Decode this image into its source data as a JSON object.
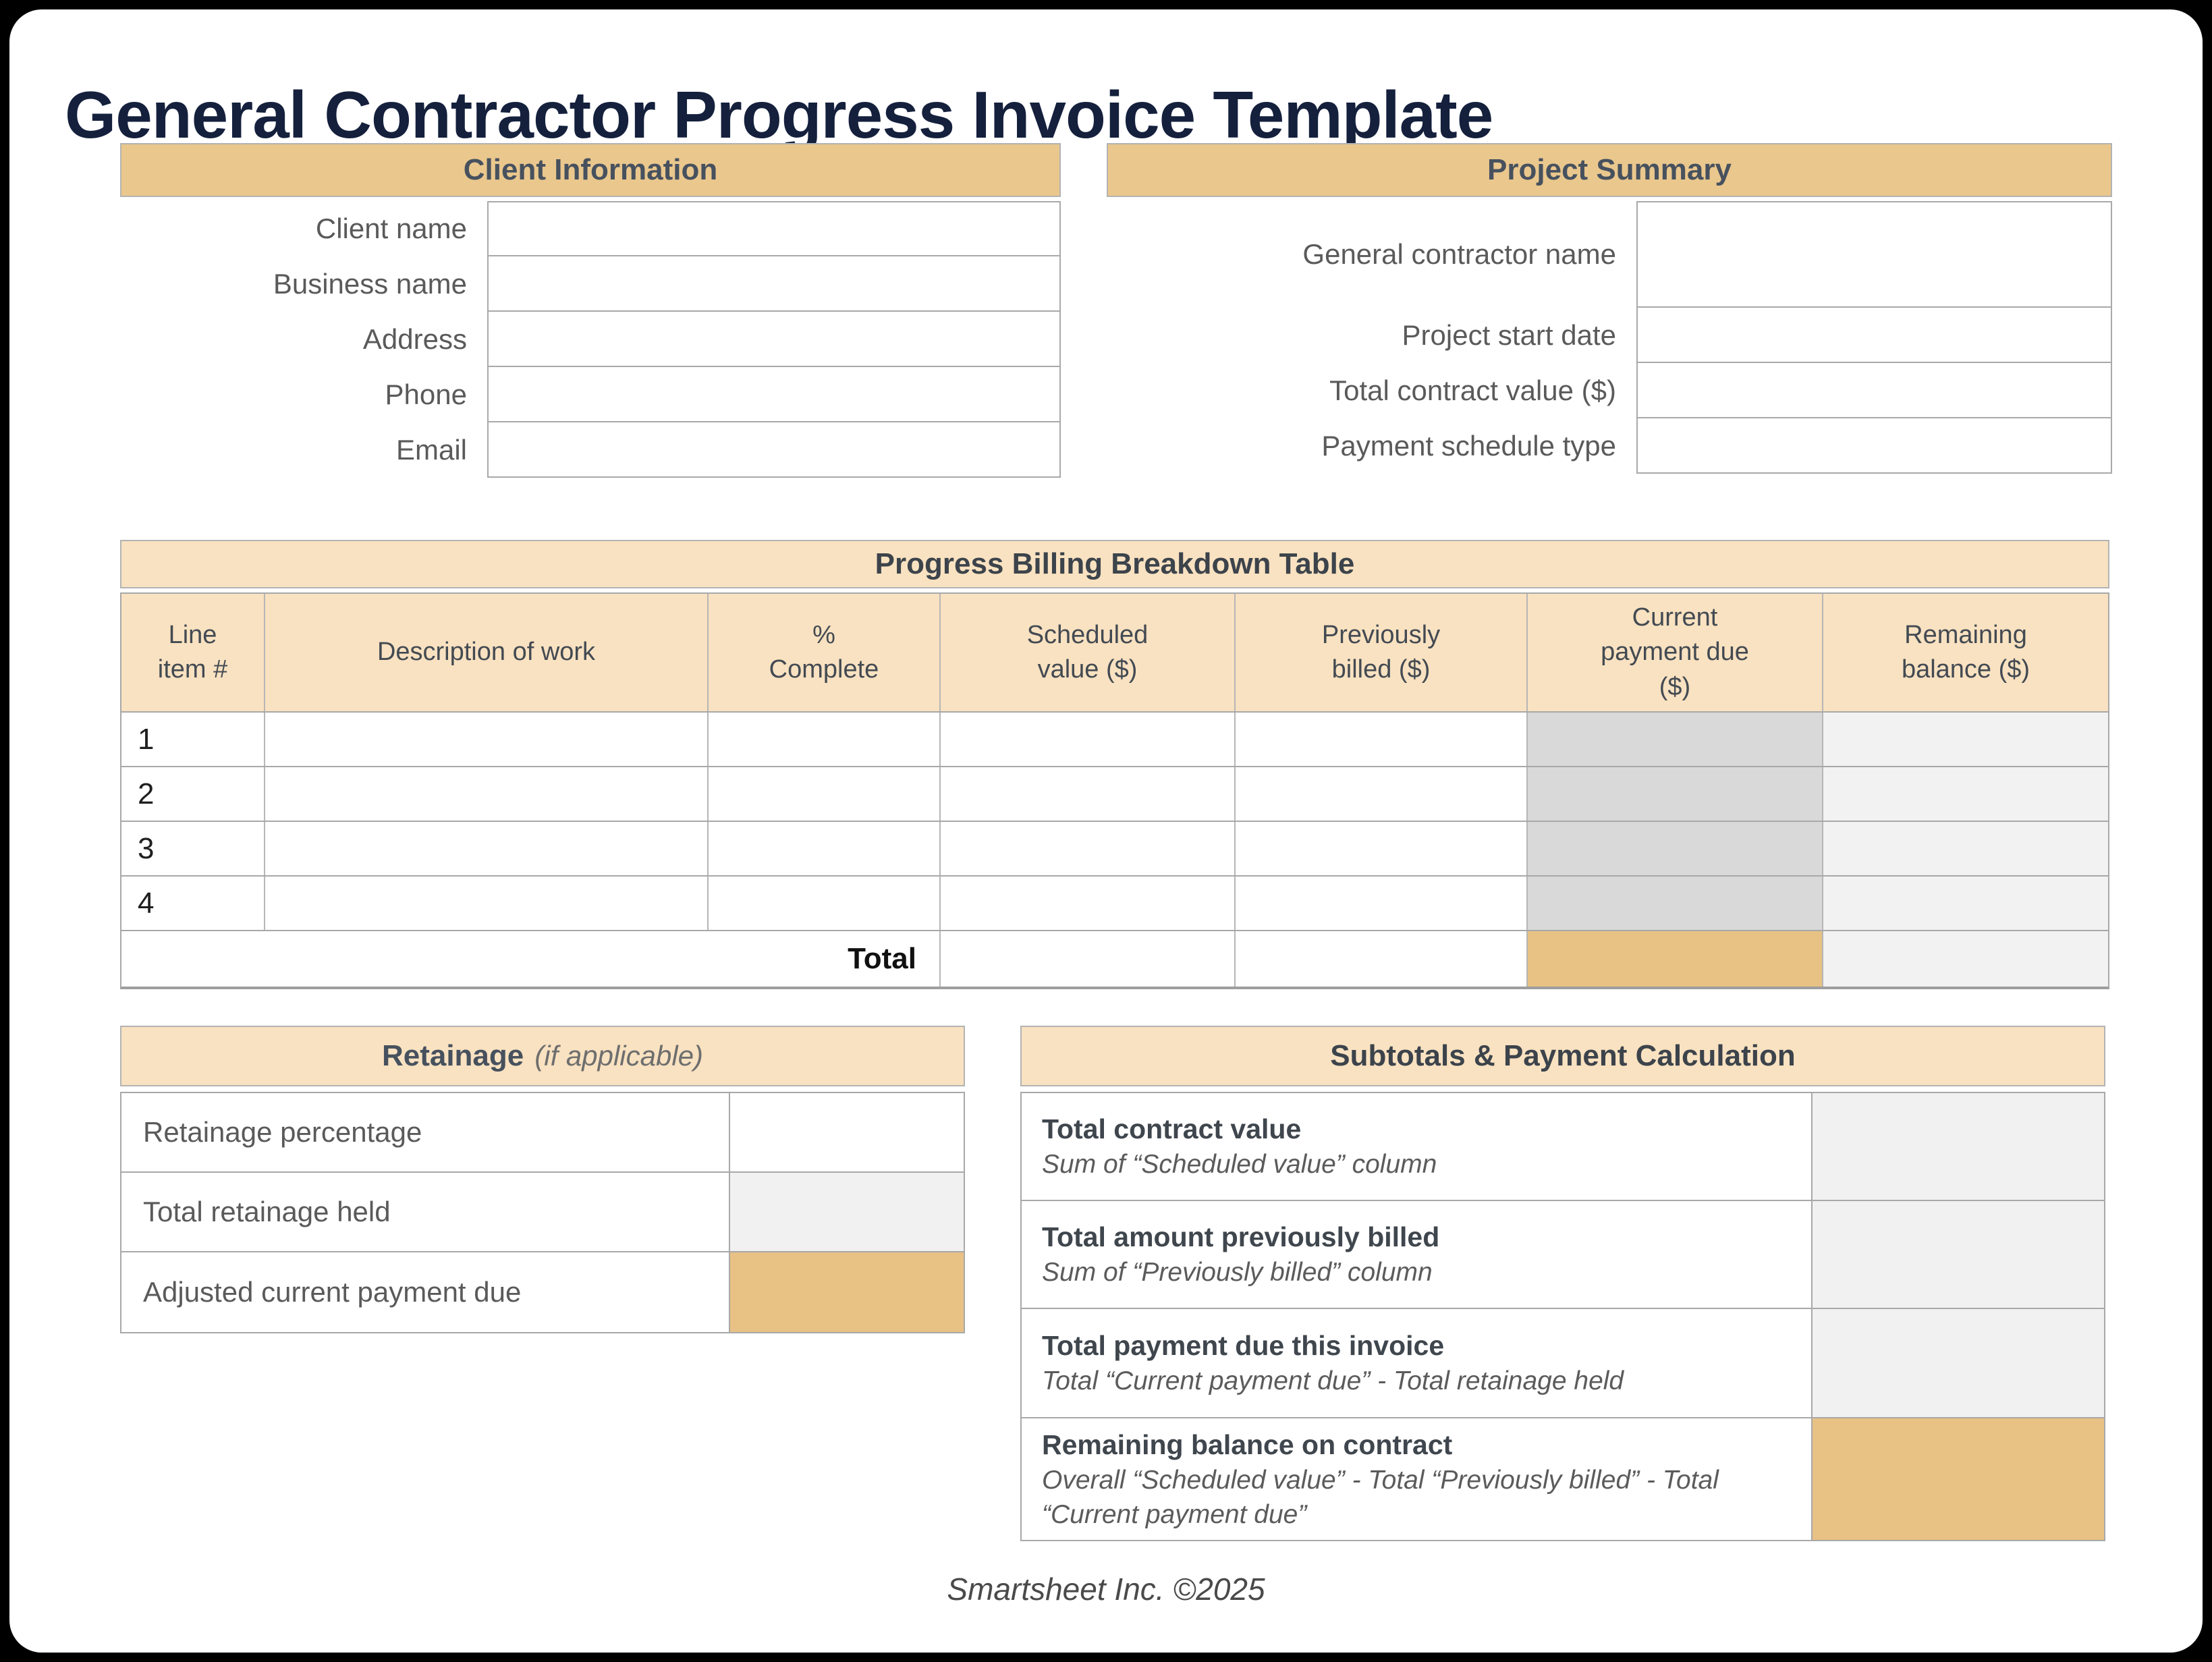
{
  "title": "General Contractor Progress Invoice Template",
  "colors": {
    "page_frame": "#000000",
    "card_background": "#FFFFFF",
    "title_navy": "#14203C",
    "header_tan": "#EAC78D",
    "light_tan": "#F9E2C1",
    "accent_cell": "#E8C185",
    "computed_gray_cell": "#D9D9D9",
    "computed_light_gray_cell": "#F2F2F2",
    "label_gray": "#5A5A5A",
    "header_text": "#47515E"
  },
  "client_info": {
    "title": "Client Information",
    "fields": [
      {
        "label": "Client name",
        "value": ""
      },
      {
        "label": "Business name",
        "value": ""
      },
      {
        "label": "Address",
        "value": ""
      },
      {
        "label": "Phone",
        "value": ""
      },
      {
        "label": "Email",
        "value": ""
      }
    ]
  },
  "project_summary": {
    "title": "Project Summary",
    "fields": [
      {
        "label": "General contractor name",
        "value": ""
      },
      {
        "label": "Project start date",
        "value": ""
      },
      {
        "label": "Total contract value ($)",
        "value": ""
      },
      {
        "label": "Payment schedule type",
        "value": ""
      }
    ]
  },
  "billing_table": {
    "title": "Progress Billing Breakdown Table",
    "columns": [
      "Line\nitem #",
      "Description of work",
      "%\nComplete",
      "Scheduled\nvalue ($)",
      "Previously\nbilled ($)",
      "Current\npayment due\n($)",
      "Remaining\nbalance ($)"
    ],
    "rows": [
      {
        "line_item": "1",
        "description": "",
        "percent_complete": "",
        "scheduled_value": "",
        "previously_billed": "",
        "current_payment_due": "",
        "remaining_balance": ""
      },
      {
        "line_item": "2",
        "description": "",
        "percent_complete": "",
        "scheduled_value": "",
        "previously_billed": "",
        "current_payment_due": "",
        "remaining_balance": ""
      },
      {
        "line_item": "3",
        "description": "",
        "percent_complete": "",
        "scheduled_value": "",
        "previously_billed": "",
        "current_payment_due": "",
        "remaining_balance": ""
      },
      {
        "line_item": "4",
        "description": "",
        "percent_complete": "",
        "scheduled_value": "",
        "previously_billed": "",
        "current_payment_due": "",
        "remaining_balance": ""
      }
    ],
    "total_label": "Total",
    "total_row": {
      "scheduled_value": "",
      "previously_billed": "",
      "current_payment_due": "",
      "remaining_balance": ""
    }
  },
  "retainage": {
    "title": "Retainage",
    "title_suffix": "(if applicable)",
    "rows": [
      {
        "label": "Retainage percentage",
        "value": ""
      },
      {
        "label": "Total retainage held",
        "value": ""
      },
      {
        "label": "Adjusted current payment due",
        "value": ""
      }
    ]
  },
  "subtotals": {
    "title": "Subtotals & Payment Calculation",
    "rows": [
      {
        "label": "Total contract value",
        "formula": "Sum of “Scheduled value” column",
        "value": ""
      },
      {
        "label": "Total amount previously billed",
        "formula": "Sum of “Previously billed” column",
        "value": ""
      },
      {
        "label": "Total payment due this invoice",
        "formula": "Total “Current payment due” - Total retainage held",
        "value": ""
      },
      {
        "label": "Remaining balance on contract",
        "formula": "Overall “Scheduled value” - Total “Previously billed” - Total “Current payment due”",
        "value": ""
      }
    ]
  },
  "footer": "Smartsheet Inc. ©2025"
}
